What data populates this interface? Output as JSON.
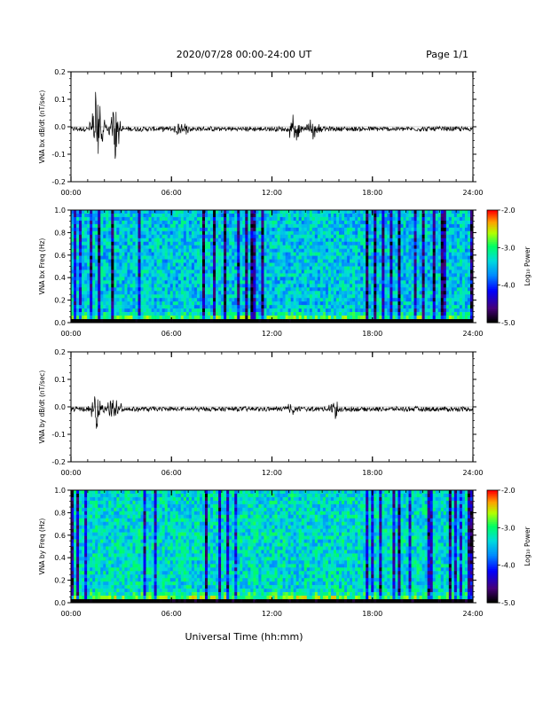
{
  "header": {
    "date_range": "2020/07/28  00:00-24:00 UT",
    "page": "Page 1/1"
  },
  "xaxis": {
    "label": "Universal Time (hh:mm)",
    "ticks": [
      "00:00",
      "06:00",
      "12:00",
      "18:00",
      "24:00"
    ]
  },
  "colorbar": {
    "label": "Log₁₀ Power",
    "ticks": [
      "-2.0",
      "-3.0",
      "-4.0",
      "-5.0"
    ],
    "range": [
      -5.0,
      -2.0
    ],
    "colors": [
      "#000000",
      "#3a0066",
      "#0000ff",
      "#00c8ff",
      "#00ff80",
      "#c8ff00",
      "#ff8c00",
      "#ff0000"
    ]
  },
  "chart_data": [
    {
      "type": "line",
      "ylabel": "VNA bx dB/dt (nT/sec)",
      "x_range_hours": [
        0,
        24
      ],
      "ylim": [
        -0.2,
        0.2
      ],
      "yticks": [
        "0.2",
        "0.1",
        "0.0",
        "-0.1",
        "-0.2"
      ],
      "events": [
        {
          "t": 1.6,
          "peak": 0.16,
          "trough": -0.1
        },
        {
          "t": 2.6,
          "peak": 0.09,
          "trough": -0.11
        },
        {
          "t": 6.6,
          "peak": 0.04,
          "trough": -0.04
        },
        {
          "t": 13.3,
          "peak": 0.05,
          "trough": -0.05
        },
        {
          "t": 14.5,
          "peak": 0.06,
          "trough": -0.03
        }
      ]
    },
    {
      "type": "heatmap",
      "ylabel": "VNA bx Freq (Hz)",
      "x_range_hours": [
        0,
        24
      ],
      "ylim": [
        0.0,
        1.0
      ],
      "yticks": [
        "1.0",
        "0.8",
        "0.6",
        "0.4",
        "0.2",
        "0.0"
      ]
    },
    {
      "type": "line",
      "ylabel": "VNA by dB/dt (nT/sec)",
      "x_range_hours": [
        0,
        24
      ],
      "ylim": [
        -0.2,
        0.2
      ],
      "yticks": [
        "0.2",
        "0.1",
        "0.0",
        "-0.1",
        "-0.2"
      ],
      "events": [
        {
          "t": 1.5,
          "peak": 0.05,
          "trough": -0.07
        },
        {
          "t": 2.6,
          "peak": 0.07,
          "trough": -0.04
        },
        {
          "t": 13.2,
          "peak": 0.02,
          "trough": -0.02
        },
        {
          "t": 15.8,
          "peak": 0.04,
          "trough": -0.03
        }
      ]
    },
    {
      "type": "heatmap",
      "ylabel": "VNA by Freq (Hz)",
      "x_range_hours": [
        0,
        24
      ],
      "ylim": [
        0.0,
        1.0
      ],
      "yticks": [
        "1.0",
        "0.8",
        "0.6",
        "0.4",
        "0.2",
        "0.0"
      ]
    }
  ]
}
